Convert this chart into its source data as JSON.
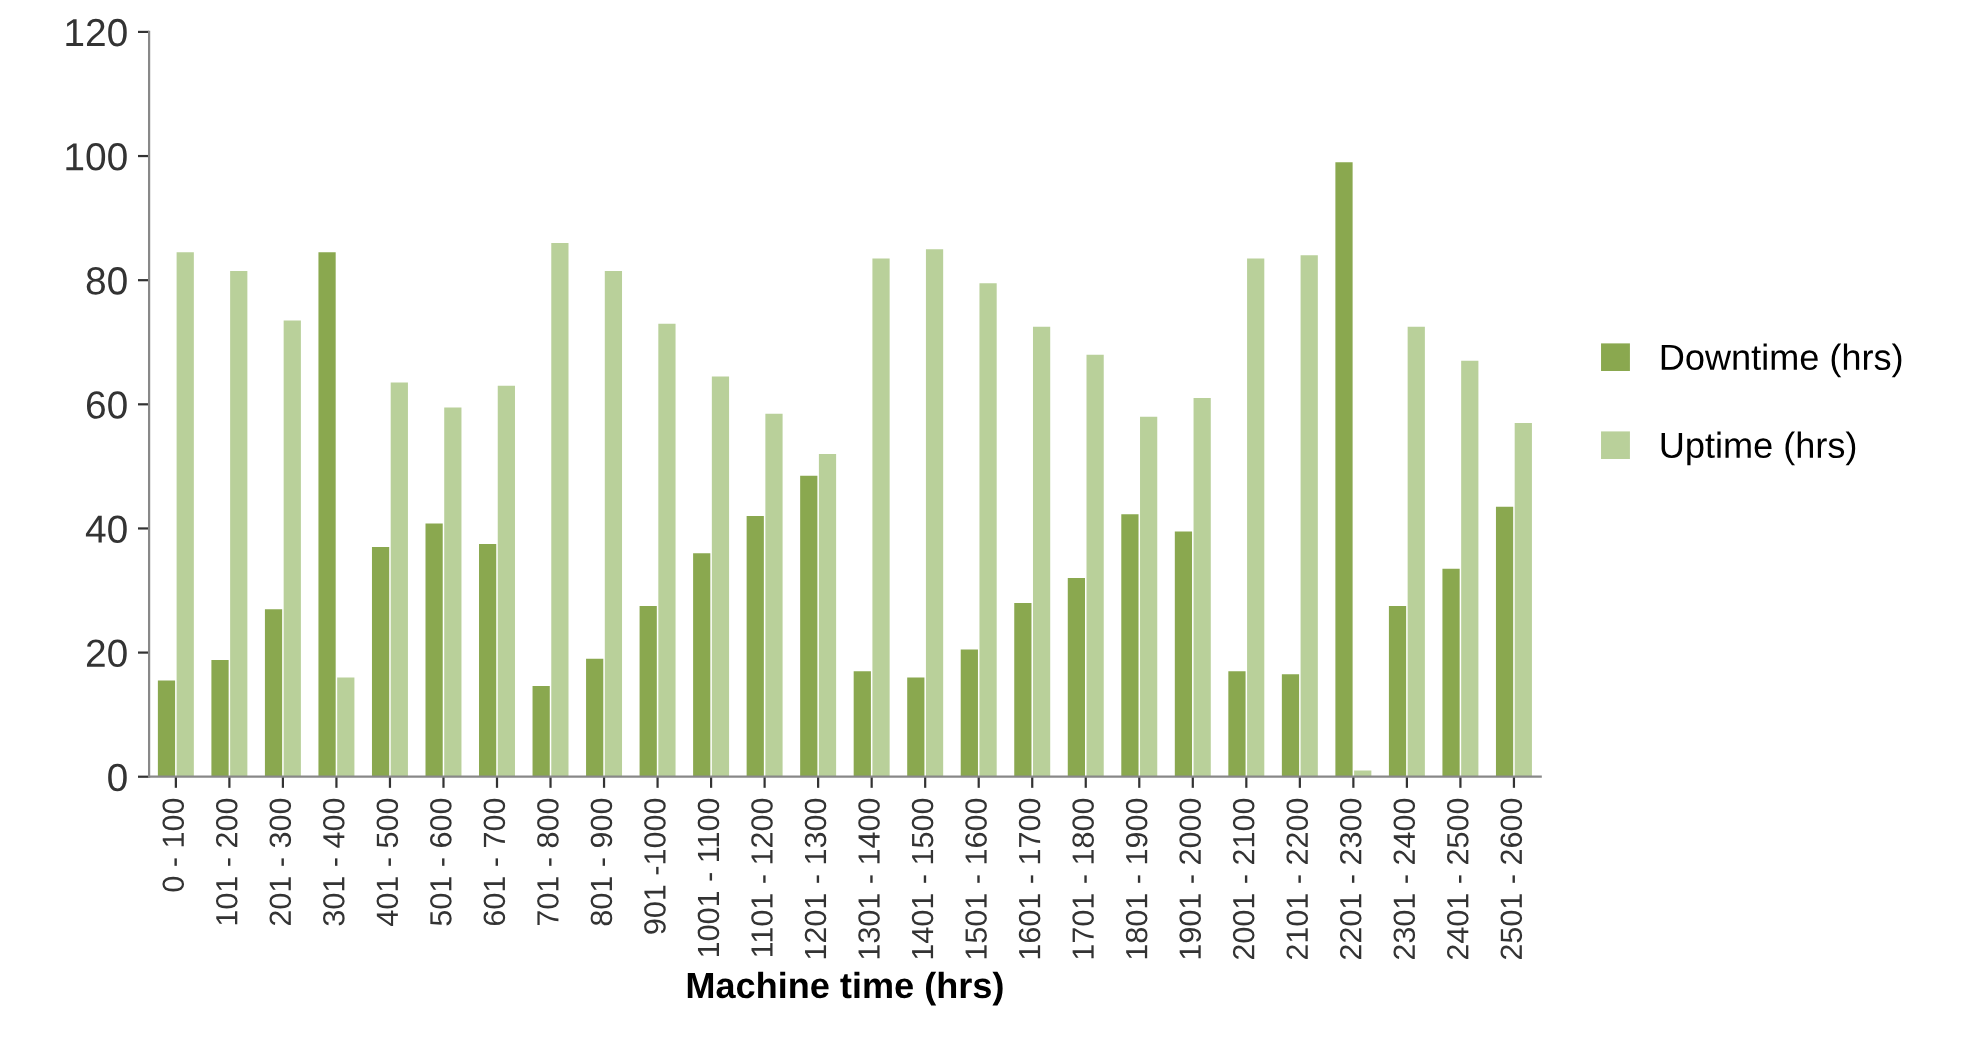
{
  "chart_data": {
    "type": "bar",
    "xlabel": "Machine time (hrs)",
    "categories": [
      "0 - 100",
      "101 - 200",
      "201 - 300",
      "301 - 400",
      "401 - 500",
      "501 - 600",
      "601 - 700",
      "701 - 800",
      "801 - 900",
      "901 -1000",
      "1001 - 1100",
      "1101 - 1200",
      "1201 - 1300",
      "1301 - 1400",
      "1401 - 1500",
      "1501 - 1600",
      "1601 - 1700",
      "1701 - 1800",
      "1801 - 1900",
      "1901 - 2000",
      "2001 - 2100",
      "2101 - 2200",
      "2201 - 2300",
      "2301 - 2400",
      "2401 - 2500",
      "2501 - 2600"
    ],
    "series": [
      {
        "name": "Downtime (hrs)",
        "color": "#8aa84f",
        "values": [
          15.5,
          18.8,
          27,
          84.5,
          37,
          40.8,
          37.5,
          14.6,
          19,
          27.5,
          36,
          42,
          48.5,
          17,
          16,
          20.5,
          28,
          32,
          42.3,
          39.5,
          17,
          16.5,
          99,
          27.5,
          33.5,
          43.5
        ]
      },
      {
        "name": "Uptime (hrs)",
        "color": "#b9d09a",
        "values": [
          84.5,
          81.5,
          73.5,
          16,
          63.5,
          59.5,
          63,
          86,
          81.5,
          73,
          64.5,
          58.5,
          52,
          83.5,
          85,
          79.5,
          72.5,
          68,
          58,
          61,
          83.5,
          84,
          1,
          72.5,
          67,
          57
        ]
      }
    ],
    "ylim": [
      0,
      120
    ],
    "yticks": [
      0,
      20,
      40,
      60,
      80,
      100,
      120
    ],
    "grid": false,
    "legend": "right"
  }
}
